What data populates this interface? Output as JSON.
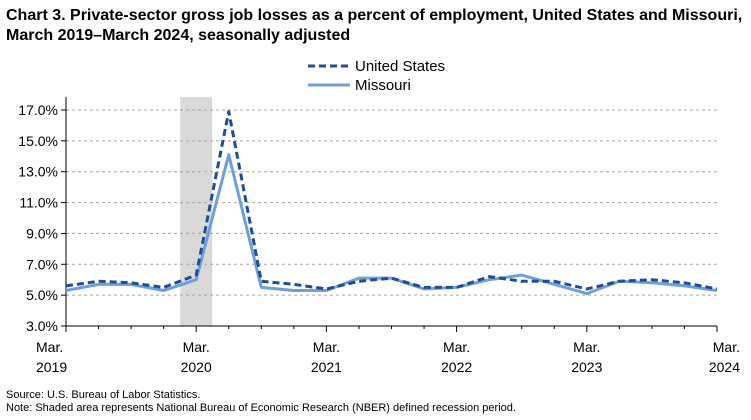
{
  "chart_data": {
    "type": "line",
    "title": "Chart 3. Private-sector gross job losses as a percent of employment, United States and Missouri, March 2019–March 2024, seasonally adjusted",
    "xlabel": "",
    "ylabel": "",
    "ylim": [
      3.0,
      17.0
    ],
    "yticks": [
      "3.0%",
      "5.0%",
      "7.0%",
      "9.0%",
      "11.0%",
      "13.0%",
      "15.0%",
      "17.0%"
    ],
    "ytick_values": [
      3,
      5,
      7,
      9,
      11,
      13,
      15,
      17
    ],
    "xtick_labels": [
      {
        "month": "Mar.",
        "year": "2019"
      },
      {
        "month": "Mar.",
        "year": "2020"
      },
      {
        "month": "Mar.",
        "year": "2021"
      },
      {
        "month": "Mar.",
        "year": "2022"
      },
      {
        "month": "Mar.",
        "year": "2023"
      },
      {
        "month": "Mar.",
        "year": "2024"
      }
    ],
    "grid": true,
    "legend_position": "top-center",
    "recession_shading": {
      "start": "2020-03",
      "end": "2020-06",
      "color": "#d9d9d9"
    },
    "x": [
      "2019-03",
      "2019-06",
      "2019-09",
      "2019-12",
      "2020-03",
      "2020-06",
      "2020-09",
      "2020-12",
      "2021-03",
      "2021-06",
      "2021-09",
      "2021-12",
      "2022-03",
      "2022-06",
      "2022-09",
      "2022-12",
      "2023-03",
      "2023-06",
      "2023-09",
      "2023-12",
      "2024-03"
    ],
    "series": [
      {
        "name": "United States",
        "color": "#1f4e96",
        "style": "dashed",
        "values": [
          5.6,
          5.9,
          5.8,
          5.5,
          6.3,
          16.9,
          5.9,
          5.7,
          5.4,
          5.9,
          6.1,
          5.5,
          5.5,
          6.2,
          5.9,
          5.9,
          5.4,
          5.9,
          6.0,
          5.8,
          5.4
        ]
      },
      {
        "name": "Missouri",
        "color": "#6f9fd8",
        "style": "solid",
        "values": [
          5.3,
          5.7,
          5.7,
          5.3,
          6.0,
          14.1,
          5.5,
          5.3,
          5.3,
          6.1,
          6.1,
          5.4,
          5.5,
          6.0,
          6.3,
          5.7,
          5.1,
          5.9,
          5.8,
          5.6,
          5.3
        ]
      }
    ]
  },
  "footer": {
    "source": "Source: U.S. Bureau of Labor Statistics.",
    "note": "Note: Shaded area represents National Bureau of Economic Research (NBER) defined  recession period."
  }
}
